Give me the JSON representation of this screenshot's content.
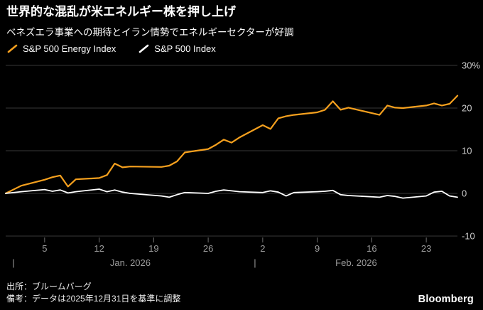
{
  "header": {
    "title": "世界的な混乱が米エネルギー株を押し上げ",
    "subtitle": "ベネズエラ事業への期待とイラン情勢でエネルギーセクターが好調"
  },
  "legend": [
    {
      "label": "S&P 500 Energy Index",
      "color": "#f5a01e"
    },
    {
      "label": "S&P 500 Index",
      "color": "#ffffff"
    }
  ],
  "chart_data": {
    "type": "line",
    "title": "世界的な混乱が米エネルギー株を押し上げ",
    "x_unit": "days_from_2025-12-31",
    "x_domain": [
      0,
      58
    ],
    "ylim": [
      -10,
      30
    ],
    "yticks": [
      30,
      20,
      10,
      0,
      -10
    ],
    "ytick_labels": [
      "30%",
      "20",
      "10",
      "0",
      "-10"
    ],
    "xticks": [
      {
        "day": 5,
        "label": "5"
      },
      {
        "day": 12,
        "label": "12"
      },
      {
        "day": 19,
        "label": "19"
      },
      {
        "day": 26,
        "label": "26"
      },
      {
        "day": 33,
        "label": "2"
      },
      {
        "day": 40,
        "label": "9"
      },
      {
        "day": 47,
        "label": "16"
      },
      {
        "day": 54,
        "label": "23"
      }
    ],
    "months": [
      {
        "label": "Jan. 2026",
        "sep_day": 1,
        "center_day": 16
      },
      {
        "label": "Feb. 2026",
        "sep_day": 32,
        "center_day": 45
      }
    ],
    "x": [
      0,
      2,
      5,
      6,
      7,
      8,
      9,
      12,
      13,
      14,
      15,
      16,
      20,
      21,
      22,
      23,
      26,
      27,
      28,
      29,
      30,
      33,
      34,
      35,
      36,
      37,
      40,
      41,
      42,
      43,
      44,
      48,
      49,
      50,
      51,
      54,
      55,
      56,
      57,
      58
    ],
    "series": [
      {
        "name": "S&P 500 Energy Index",
        "color": "#f5a01e",
        "width": 2.2,
        "values": [
          0,
          1.8,
          3.2,
          3.8,
          4.2,
          1.6,
          3.3,
          3.6,
          4.3,
          7.0,
          6.1,
          6.3,
          6.2,
          6.5,
          7.5,
          9.6,
          10.4,
          11.4,
          12.6,
          11.9,
          13.1,
          16.0,
          15.1,
          17.6,
          18.1,
          18.4,
          19.0,
          19.6,
          21.6,
          19.6,
          20.1,
          18.4,
          20.6,
          20.1,
          20.0,
          20.6,
          21.1,
          20.6,
          21.0,
          22.9
        ]
      },
      {
        "name": "S&P 500 Index",
        "color": "#ffffff",
        "width": 1.8,
        "values": [
          0,
          0.4,
          0.9,
          0.5,
          0.8,
          0.1,
          0.4,
          1.0,
          0.4,
          0.8,
          0.3,
          0.0,
          -0.6,
          -0.9,
          -0.3,
          0.2,
          0.0,
          0.5,
          0.8,
          0.6,
          0.4,
          0.2,
          0.6,
          0.3,
          -0.6,
          0.2,
          0.4,
          0.5,
          0.7,
          -0.3,
          -0.5,
          -0.9,
          -0.5,
          -0.7,
          -1.1,
          -0.6,
          0.3,
          0.5,
          -0.6,
          -0.9
        ]
      }
    ],
    "colors": {
      "background": "#000000",
      "grid": "#383838",
      "tick_mark": "#707070",
      "axis_text": "#9c9c9c",
      "ytick_text": "#cccccc"
    },
    "grid": "horizontal",
    "legend_position": "top-left"
  },
  "footer": {
    "source": "出所：ブルームバーグ",
    "note": "備考：データは2025年12月31日を基準に調整",
    "logo": "Bloomberg"
  }
}
